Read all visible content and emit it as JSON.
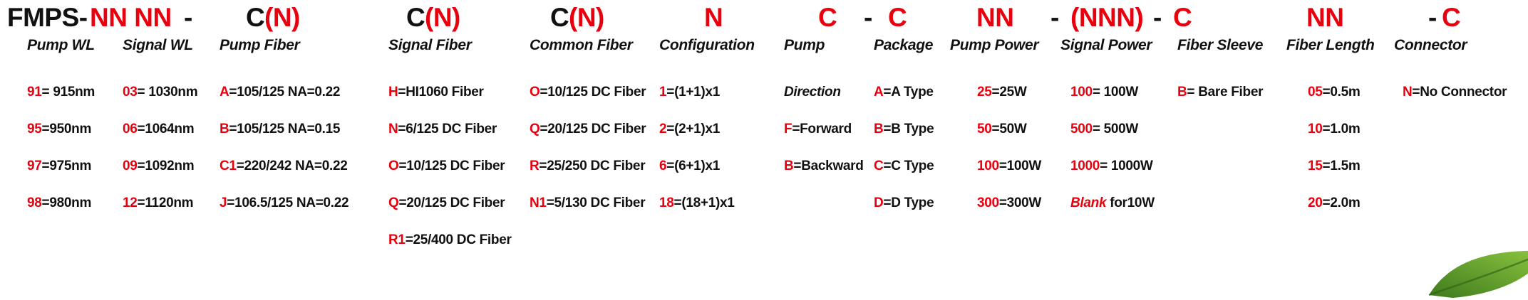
{
  "format": {
    "tokens": [
      {
        "text": "FMPS-",
        "color": "black"
      },
      {
        "text": "NN NN",
        "color": "red"
      },
      {
        "text": "-",
        "color": "black"
      },
      {
        "text": "C",
        "color": "black"
      },
      {
        "text": "(N)",
        "color": "red"
      },
      {
        "text": "C",
        "color": "black"
      },
      {
        "text": "(N)",
        "color": "red"
      },
      {
        "text": "C",
        "color": "black"
      },
      {
        "text": "(N)",
        "color": "red"
      },
      {
        "text": "N",
        "color": "red"
      },
      {
        "text": "C",
        "color": "red"
      },
      {
        "text": "-",
        "color": "black"
      },
      {
        "text": "C",
        "color": "red"
      },
      {
        "text": "NN",
        "color": "red"
      },
      {
        "text": "-",
        "color": "black"
      },
      {
        "text": "(NNN)",
        "color": "red"
      },
      {
        "text": "-",
        "color": "black"
      },
      {
        "text": "C",
        "color": "red"
      },
      {
        "text": "NN",
        "color": "red"
      },
      {
        "text": "-",
        "color": "black"
      },
      {
        "text": "C",
        "color": "red"
      }
    ]
  },
  "columns": [
    {
      "header": "Pump WL",
      "entries": [
        {
          "code": "91",
          "value": "= 915nm"
        },
        {
          "code": "95",
          "value": "=950nm"
        },
        {
          "code": "97",
          "value": "=975nm"
        },
        {
          "code": "98",
          "value": "=980nm"
        }
      ]
    },
    {
      "header": "Signal WL",
      "entries": [
        {
          "code": "03",
          "value": "= 1030nm"
        },
        {
          "code": "06",
          "value": "=1064nm"
        },
        {
          "code": "09",
          "value": "=1092nm"
        },
        {
          "code": "12",
          "value": "=1120nm"
        }
      ]
    },
    {
      "header": "Pump Fiber",
      "entries": [
        {
          "code": "A",
          "value": "=105/125 NA=0.22"
        },
        {
          "code": "B",
          "value": "=105/125 NA=0.15"
        },
        {
          "code": "C1",
          "value": "=220/242 NA=0.22"
        },
        {
          "code": "J",
          "value": "=106.5/125 NA=0.22"
        }
      ]
    },
    {
      "header": "Signal Fiber",
      "entries": [
        {
          "code": "H",
          "value": "=HI1060 Fiber"
        },
        {
          "code": "N",
          "value": "=6/125 DC Fiber"
        },
        {
          "code": "O",
          "value": "=10/125 DC Fiber"
        },
        {
          "code": "Q",
          "value": "=20/125 DC Fiber"
        },
        {
          "code": "R1",
          "value": "=25/400 DC Fiber"
        }
      ]
    },
    {
      "header": "Common Fiber",
      "entries": [
        {
          "code": "O",
          "value": "=10/125 DC Fiber"
        },
        {
          "code": "Q",
          "value": "=20/125 DC Fiber"
        },
        {
          "code": "R",
          "value": "=25/250 DC Fiber"
        },
        {
          "code": "N1",
          "value": "=5/130 DC Fiber"
        }
      ]
    },
    {
      "header": "Configuration",
      "entries": [
        {
          "code": "1",
          "value": "=(1+1)x1"
        },
        {
          "code": "2",
          "value": "=(2+1)x1"
        },
        {
          "code": "6",
          "value": "=(6+1)x1"
        },
        {
          "code": "18",
          "value": "=(18+1)x1"
        }
      ]
    },
    {
      "header": "Pump",
      "entries": [
        {
          "label": "Direction"
        },
        {
          "code": "F",
          "value": "=Forward"
        },
        {
          "code": "B",
          "value": "=Backward"
        }
      ]
    },
    {
      "header": "Package",
      "entries": [
        {
          "code": "A",
          "value": "=A Type"
        },
        {
          "code": "B",
          "value": "=B Type"
        },
        {
          "code": "C",
          "value": "=C Type"
        },
        {
          "code": "D",
          "value": "=D Type"
        }
      ]
    },
    {
      "header": "Pump Power",
      "entries": [
        {
          "code": "25",
          "value": "=25W"
        },
        {
          "code": "50",
          "value": "=50W"
        },
        {
          "code": "100",
          "value": "=100W"
        },
        {
          "code": "300",
          "value": "=300W"
        }
      ]
    },
    {
      "header": "Signal Power",
      "entries": [
        {
          "code": "100",
          "value": "= 100W"
        },
        {
          "code": "500",
          "value": "= 500W"
        },
        {
          "code": "1000",
          "value": "= 1000W"
        },
        {
          "code": "Blank",
          "value": " for10W",
          "italicCode": true
        }
      ]
    },
    {
      "header": "Fiber Sleeve",
      "entries": [
        {
          "code": "B",
          "value": "= Bare Fiber"
        }
      ]
    },
    {
      "header": "Fiber Length",
      "entries": [
        {
          "code": "05",
          "value": "=0.5m"
        },
        {
          "code": "10",
          "value": "=1.0m"
        },
        {
          "code": "15",
          "value": "=1.5m"
        },
        {
          "code": "20",
          "value": "=2.0m"
        }
      ]
    },
    {
      "header": "Connector",
      "entries": [
        {
          "code": "N",
          "value": "=No Connector"
        }
      ]
    }
  ],
  "colors": {
    "red": "#e8000e",
    "black": "#111111",
    "leaf_green": "#6aa637"
  }
}
